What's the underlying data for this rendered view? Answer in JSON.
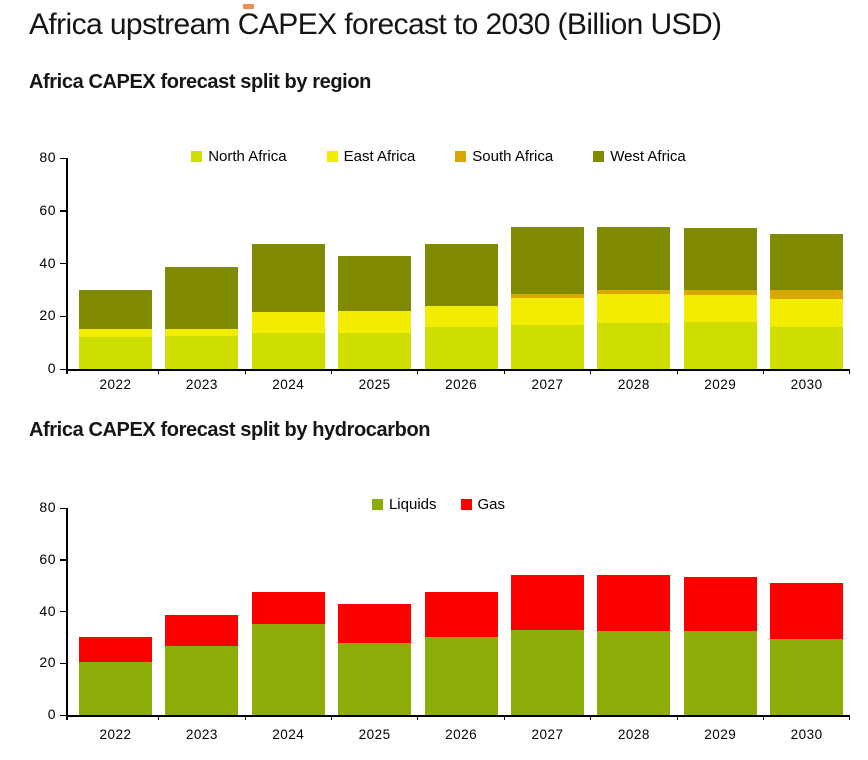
{
  "page": {
    "title": "Africa upstream CAPEX forecast to 2030 (Billion USD)"
  },
  "colors": {
    "north_africa": "#CEDE00",
    "east_africa": "#F2ED00",
    "south_africa": "#D9A800",
    "west_africa": "#7F8A00",
    "liquids": "#8CAC08",
    "gas": "#FC0000",
    "axis": "#000000",
    "text": "#151515",
    "accent_dash": "#EF8F4F"
  },
  "chart_data": [
    {
      "type": "bar",
      "stacked": true,
      "title": "Africa CAPEX forecast split by region",
      "categories": [
        "2022",
        "2023",
        "2024",
        "2025",
        "2026",
        "2027",
        "2028",
        "2029",
        "2030"
      ],
      "series": [
        {
          "name": "North Africa",
          "color_key": "north_africa",
          "values": [
            12,
            12.5,
            13.5,
            13.5,
            16,
            16.5,
            17.5,
            18,
            16
          ]
        },
        {
          "name": "East Africa",
          "color_key": "east_africa",
          "values": [
            3,
            2.5,
            8,
            8.5,
            8,
            10.5,
            11,
            10,
            10.5
          ]
        },
        {
          "name": "South Africa",
          "color_key": "south_africa",
          "values": [
            0,
            0,
            0,
            0,
            0,
            1.5,
            1.5,
            2,
            3.5
          ]
        },
        {
          "name": "West Africa",
          "color_key": "west_africa",
          "values": [
            15,
            23.5,
            26,
            21,
            23.5,
            25.5,
            24,
            23.5,
            21
          ]
        }
      ],
      "totals": [
        30,
        38.5,
        47.5,
        43,
        47.5,
        54,
        54,
        53.5,
        51
      ],
      "ylim": [
        0,
        80
      ],
      "yticks": [
        0,
        20,
        40,
        60,
        80
      ],
      "legend_position": "top",
      "grid": false
    },
    {
      "type": "bar",
      "stacked": true,
      "title": "Africa CAPEX forecast split by hydrocarbon",
      "categories": [
        "2022",
        "2023",
        "2024",
        "2025",
        "2026",
        "2027",
        "2028",
        "2029",
        "2030"
      ],
      "series": [
        {
          "name": "Liquids",
          "color_key": "liquids",
          "values": [
            20.5,
            26.5,
            35,
            28,
            30,
            33,
            32.5,
            32.5,
            29.5
          ]
        },
        {
          "name": "Gas",
          "color_key": "gas",
          "values": [
            9.5,
            12,
            12.5,
            15,
            17.5,
            21,
            21.5,
            21,
            21.5
          ]
        }
      ],
      "totals": [
        30,
        38.5,
        47.5,
        43,
        47.5,
        54,
        54,
        53.5,
        51
      ],
      "ylim": [
        0,
        80
      ],
      "yticks": [
        0,
        20,
        40,
        60,
        80
      ],
      "legend_position": "top",
      "grid": false
    }
  ]
}
